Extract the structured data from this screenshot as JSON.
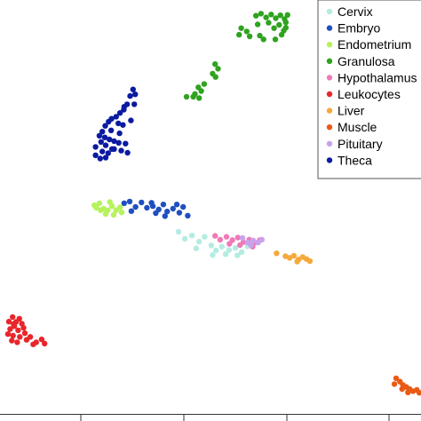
{
  "chart_data": {
    "type": "scatter",
    "title": "",
    "xlabel": "",
    "ylabel": "",
    "grid": false,
    "legend_placement": "top-right",
    "xlim": [
      0,
      100
    ],
    "ylim": [
      0,
      100
    ],
    "series": [
      {
        "name": "Cervix",
        "color": "#b3ece1",
        "points": [
          [
            42.4,
            44.0
          ],
          [
            43.9,
            42.3
          ],
          [
            45.6,
            43.1
          ],
          [
            47.3,
            41.6
          ],
          [
            48.6,
            42.8
          ],
          [
            50.2,
            40.7
          ],
          [
            51.3,
            39.5
          ],
          [
            52.7,
            40.4
          ],
          [
            54.4,
            39.6
          ],
          [
            55.9,
            40.1
          ],
          [
            57.4,
            39.1
          ],
          [
            58.8,
            40.5
          ],
          [
            50.5,
            38.4
          ],
          [
            53.6,
            38.6
          ],
          [
            56.4,
            38.3
          ],
          [
            46.6,
            40.0
          ]
        ]
      },
      {
        "name": "Embryo",
        "color": "#1f4fc0",
        "points": [
          [
            29.5,
            50.9
          ],
          [
            30.8,
            51.3
          ],
          [
            32.2,
            50.0
          ],
          [
            31.2,
            49.0
          ],
          [
            33.6,
            51.1
          ],
          [
            34.9,
            49.8
          ],
          [
            36.3,
            50.2
          ],
          [
            37.7,
            49.4
          ],
          [
            38.8,
            50.6
          ],
          [
            39.7,
            48.9
          ],
          [
            41.1,
            49.6
          ],
          [
            42.6,
            48.6
          ],
          [
            43.5,
            50.0
          ],
          [
            44.6,
            47.9
          ],
          [
            39.2,
            47.8
          ],
          [
            37.0,
            48.5
          ],
          [
            42.0,
            50.6
          ],
          [
            36.0,
            51.0
          ]
        ]
      },
      {
        "name": "Endometrium",
        "color": "#b6f25b",
        "points": [
          [
            22.4,
            50.4
          ],
          [
            23.6,
            50.9
          ],
          [
            24.6,
            49.6
          ],
          [
            25.6,
            49.2
          ],
          [
            26.6,
            50.2
          ],
          [
            27.6,
            49.2
          ],
          [
            28.5,
            49.9
          ],
          [
            25.1,
            48.3
          ],
          [
            27.0,
            48.1
          ],
          [
            23.9,
            49.2
          ],
          [
            26.1,
            51.2
          ],
          [
            28.9,
            48.7
          ],
          [
            22.9,
            49.8
          ]
        ]
      },
      {
        "name": "Granulosa",
        "color": "#2fa31f",
        "points": [
          [
            60.8,
            96.2
          ],
          [
            62.0,
            96.7
          ],
          [
            63.2,
            95.8
          ],
          [
            64.4,
            96.5
          ],
          [
            65.5,
            95.6
          ],
          [
            66.6,
            96.3
          ],
          [
            67.6,
            95.4
          ],
          [
            68.3,
            96.4
          ],
          [
            61.2,
            94.1
          ],
          [
            63.8,
            94.5
          ],
          [
            66.3,
            94.0
          ],
          [
            67.9,
            94.6
          ],
          [
            65.1,
            93.2
          ],
          [
            67.4,
            92.6
          ],
          [
            66.9,
            91.6
          ],
          [
            57.3,
            93.2
          ],
          [
            58.6,
            92.4
          ],
          [
            56.8,
            91.6
          ],
          [
            59.3,
            91.2
          ],
          [
            61.7,
            91.4
          ],
          [
            62.6,
            90.5
          ],
          [
            65.4,
            90.5
          ],
          [
            67.9,
            93.3
          ],
          [
            51.1,
            84.5
          ],
          [
            51.8,
            83.4
          ],
          [
            50.5,
            82.2
          ],
          [
            51.2,
            81.4
          ],
          [
            47.1,
            78.9
          ],
          [
            47.8,
            78.0
          ],
          [
            46.3,
            77.3
          ],
          [
            47.3,
            76.3
          ],
          [
            45.9,
            76.6
          ],
          [
            44.3,
            76.6
          ],
          [
            48.5,
            79.7
          ]
        ]
      },
      {
        "name": "Hypothalamus",
        "color": "#f07ab7",
        "points": [
          [
            51.1,
            43.0
          ],
          [
            52.3,
            42.1
          ],
          [
            53.8,
            42.8
          ],
          [
            55.2,
            42.0
          ],
          [
            56.5,
            42.6
          ],
          [
            57.8,
            41.5
          ],
          [
            59.2,
            42.1
          ],
          [
            60.6,
            41.4
          ],
          [
            61.7,
            42.0
          ],
          [
            54.5,
            41.1
          ],
          [
            57.0,
            40.8
          ],
          [
            60.0,
            40.4
          ]
        ]
      },
      {
        "name": "Leukocytes",
        "color": "#e8262b",
        "points": [
          [
            2.1,
            22.3
          ],
          [
            3.0,
            23.4
          ],
          [
            3.8,
            22.2
          ],
          [
            4.6,
            23.0
          ],
          [
            5.2,
            21.8
          ],
          [
            3.4,
            21.2
          ],
          [
            2.4,
            20.5
          ],
          [
            4.3,
            20.2
          ],
          [
            5.6,
            20.8
          ],
          [
            1.9,
            19.3
          ],
          [
            3.1,
            18.9
          ],
          [
            4.7,
            18.6
          ],
          [
            5.9,
            19.5
          ],
          [
            2.8,
            17.7
          ],
          [
            4.1,
            17.3
          ],
          [
            6.3,
            17.9
          ],
          [
            7.2,
            18.6
          ],
          [
            8.6,
            17.3
          ],
          [
            9.9,
            18.0
          ],
          [
            10.6,
            17.0
          ],
          [
            7.9,
            16.8
          ],
          [
            3.2,
            21.7
          ]
        ]
      },
      {
        "name": "Liver",
        "color": "#f5a93b",
        "points": [
          [
            65.7,
            38.8
          ],
          [
            67.8,
            38.1
          ],
          [
            68.8,
            37.7
          ],
          [
            69.8,
            38.2
          ],
          [
            70.9,
            37.3
          ],
          [
            71.9,
            37.9
          ],
          [
            72.8,
            37.4
          ],
          [
            73.6,
            36.9
          ],
          [
            70.6,
            36.8
          ]
        ]
      },
      {
        "name": "Muscle",
        "color": "#ea5a16",
        "points": [
          [
            94.1,
            8.6
          ],
          [
            95.0,
            7.8
          ],
          [
            95.7,
            7.0
          ],
          [
            96.5,
            6.5
          ],
          [
            97.3,
            6.0
          ],
          [
            98.1,
            5.5
          ],
          [
            99.0,
            5.8
          ],
          [
            99.6,
            5.1
          ],
          [
            96.9,
            5.2
          ],
          [
            95.5,
            6.0
          ],
          [
            93.7,
            7.2
          ]
        ]
      },
      {
        "name": "Pituitary",
        "color": "#c8a3ec",
        "points": [
          [
            57.6,
            42.5
          ],
          [
            58.9,
            41.4
          ],
          [
            60.1,
            41.9
          ],
          [
            61.3,
            41.4
          ],
          [
            62.2,
            42.1
          ],
          [
            59.6,
            40.8
          ]
        ]
      },
      {
        "name": "Theca",
        "color": "#0b1aa0",
        "points": [
          [
            31.6,
            78.4
          ],
          [
            30.9,
            76.8
          ],
          [
            30.2,
            74.8
          ],
          [
            29.4,
            73.5
          ],
          [
            28.5,
            72.7
          ],
          [
            27.6,
            71.8
          ],
          [
            26.5,
            71.3
          ],
          [
            25.8,
            70.6
          ],
          [
            25.0,
            69.6
          ],
          [
            24.3,
            68.2
          ],
          [
            23.6,
            67.2
          ],
          [
            24.9,
            66.8
          ],
          [
            26.0,
            66.3
          ],
          [
            27.1,
            65.9
          ],
          [
            28.2,
            65.5
          ],
          [
            25.1,
            64.9
          ],
          [
            26.6,
            64.0
          ],
          [
            24.0,
            65.7
          ],
          [
            22.7,
            64.5
          ],
          [
            22.7,
            62.5
          ],
          [
            24.3,
            63.4
          ],
          [
            25.7,
            63.0
          ],
          [
            27.1,
            64.0
          ],
          [
            28.4,
            67.8
          ],
          [
            29.8,
            65.3
          ],
          [
            28.8,
            63.6
          ],
          [
            30.3,
            63.1
          ],
          [
            31.9,
            74.8
          ],
          [
            29.2,
            69.8
          ],
          [
            32.1,
            77.2
          ],
          [
            31.1,
            70.9
          ],
          [
            28.1,
            70.2
          ],
          [
            26.4,
            68.5
          ],
          [
            29.5,
            74.2
          ],
          [
            25.1,
            61.9
          ],
          [
            23.8,
            61.7
          ]
        ]
      }
    ]
  }
}
